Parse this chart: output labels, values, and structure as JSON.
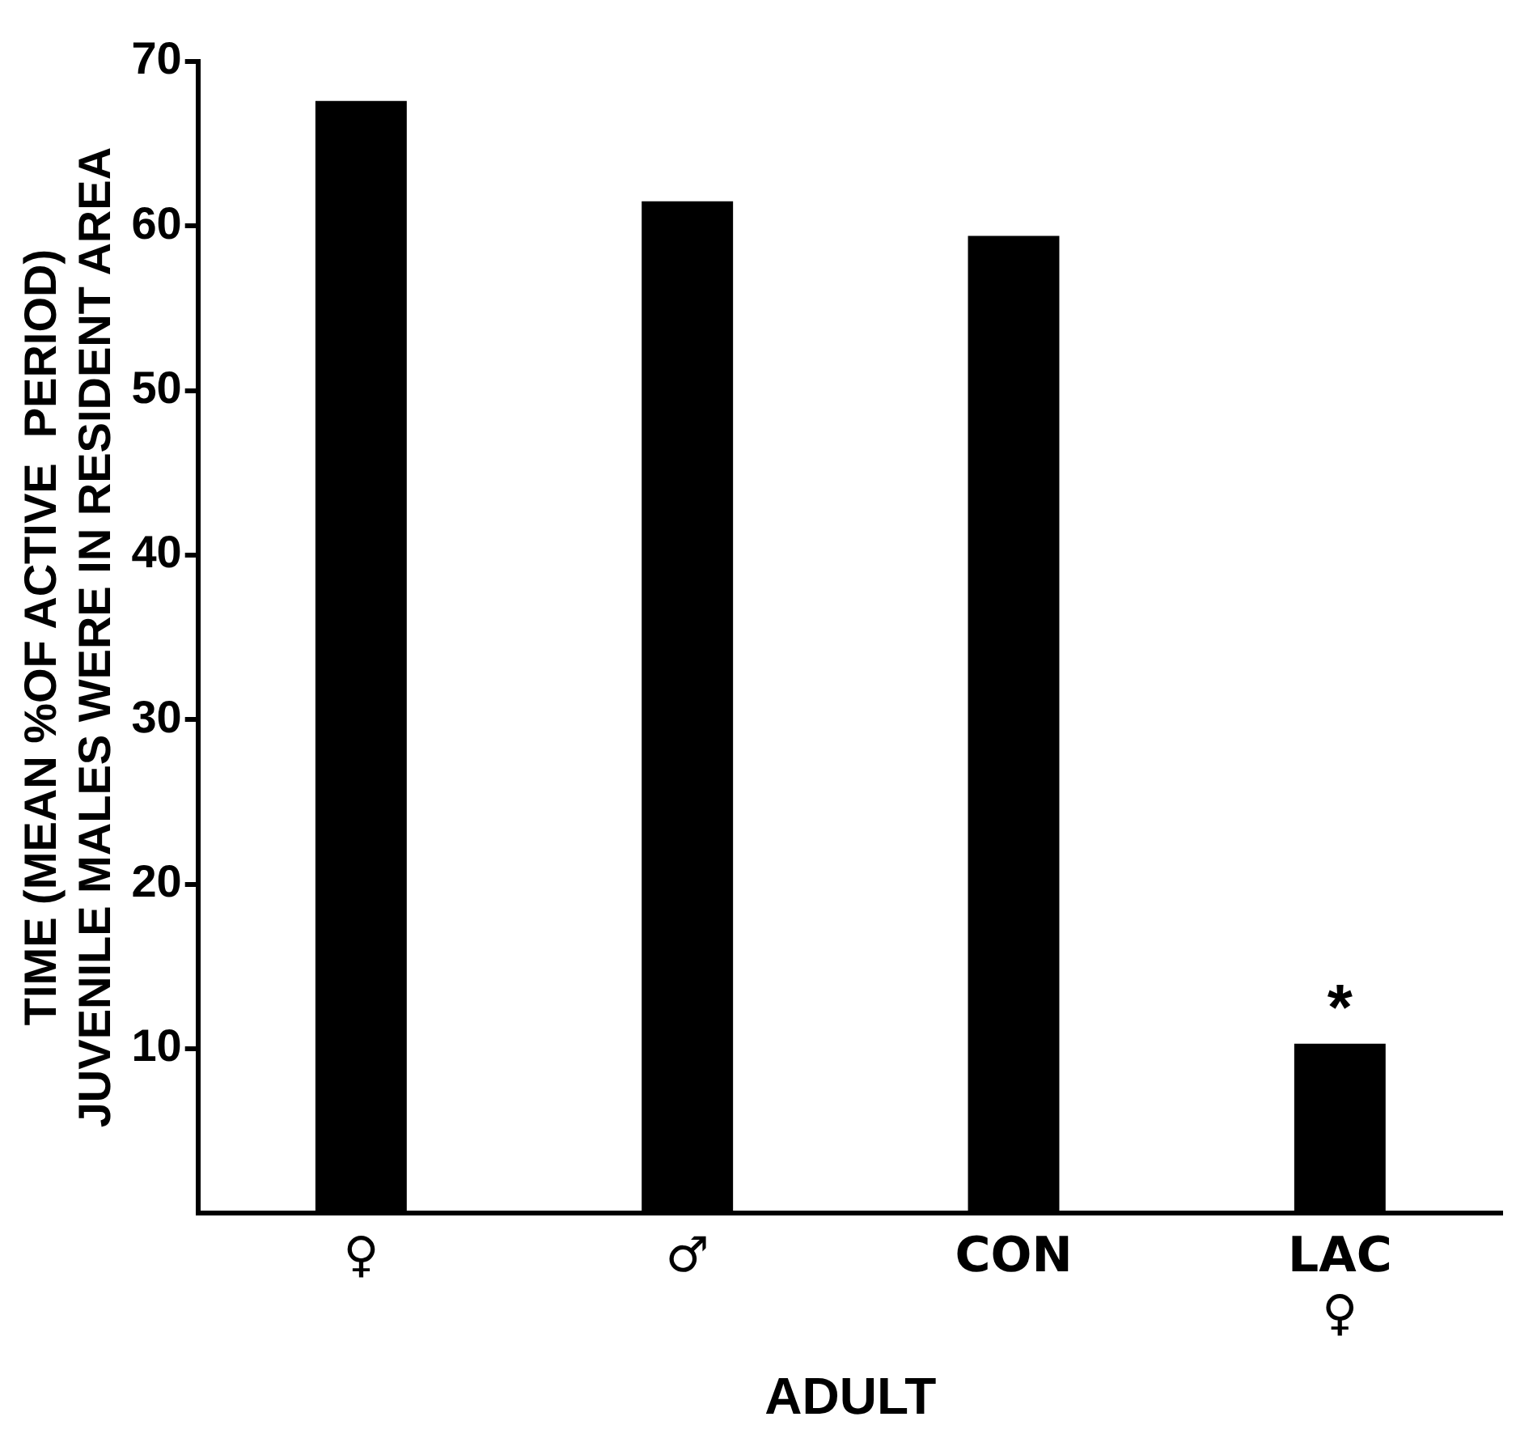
{
  "chart_data": {
    "type": "bar",
    "ylabel": "TIME (MEAN %OF ACTIVE  PERIOD)\nJUVENILE MALES WERE IN RESIDENT AREA",
    "xlabel": "ADULT",
    "categories": [
      "♀",
      "♂",
      "CON",
      "LAC\n♀"
    ],
    "values": [
      67.6,
      61.5,
      59.4,
      10.3
    ],
    "color": "#000000",
    "ylim": [
      0,
      70
    ],
    "yticks": [
      10,
      20,
      30,
      40,
      50,
      60,
      70
    ],
    "grid": false,
    "annotations": [
      {
        "text": "*",
        "x": "LAC\n♀",
        "y": 10.3
      }
    ]
  }
}
